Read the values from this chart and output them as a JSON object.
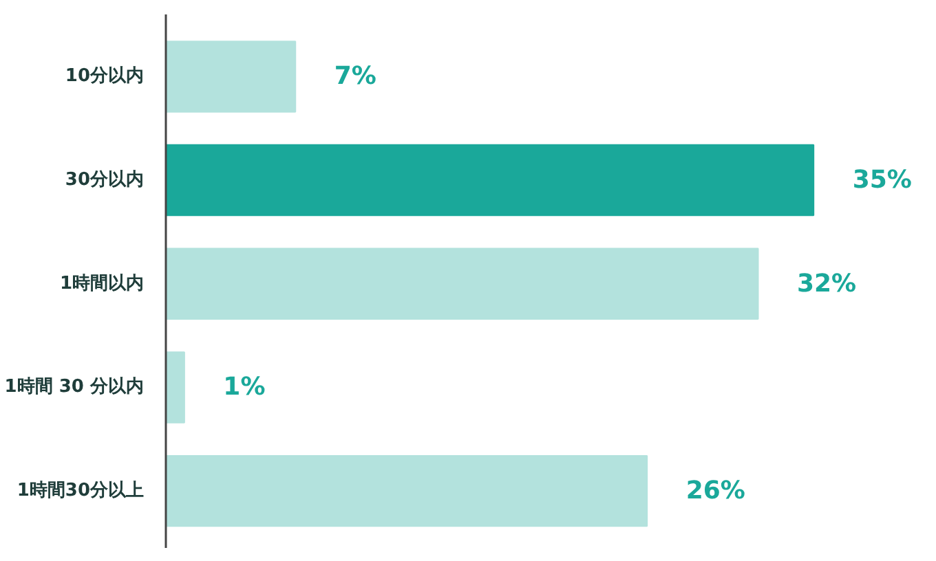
{
  "chart_data": {
    "type": "bar",
    "orientation": "horizontal",
    "categories": [
      "10分以内",
      "30分以内",
      "1時間以内",
      "1時間 30 分以内",
      "1時間30分以上"
    ],
    "values": [
      7,
      35,
      32,
      1,
      26
    ],
    "colors": [
      "#b3e2dd",
      "#1aa89a",
      "#b3e2dd",
      "#b3e2dd",
      "#b3e2dd"
    ],
    "value_labels": [
      "7%",
      "35%",
      "32%",
      "1%",
      "26%"
    ],
    "grid": false
  }
}
